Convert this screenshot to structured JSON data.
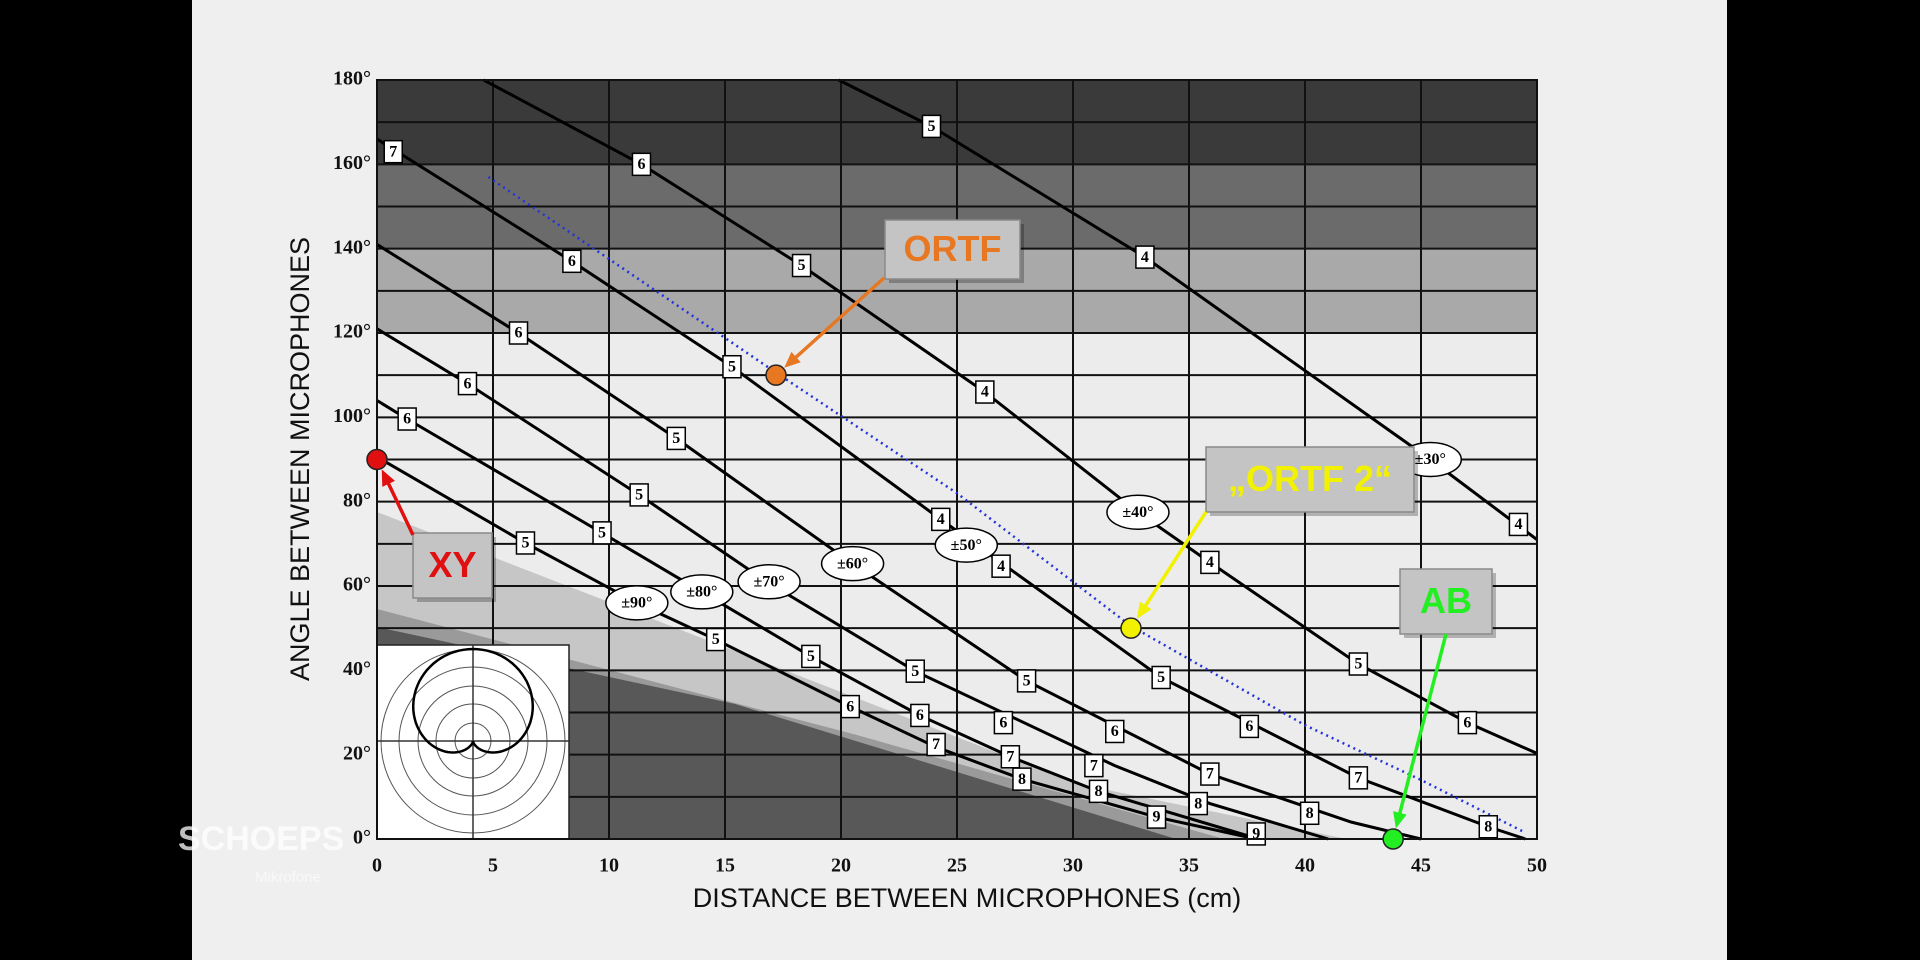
{
  "chart_data": {
    "type": "line",
    "xlabel": "DISTANCE BETWEEN MICROPHONES (cm)",
    "ylabel": "ANGLE BETWEEN MICROPHONES",
    "xlim": [
      0,
      50
    ],
    "ylim": [
      0,
      180
    ],
    "xticks": [
      0,
      5,
      10,
      15,
      20,
      25,
      30,
      35,
      40,
      45,
      50
    ],
    "yticks": [
      {
        "value": 0,
        "label": "0°"
      },
      {
        "value": 20,
        "label": "20°"
      },
      {
        "value": 40,
        "label": "40°"
      },
      {
        "value": 60,
        "label": "60°"
      },
      {
        "value": 80,
        "label": "80°"
      },
      {
        "value": 100,
        "label": "100°"
      },
      {
        "value": 120,
        "label": "120°"
      },
      {
        "value": 140,
        "label": "140°"
      },
      {
        "value": 160,
        "label": "160°"
      },
      {
        "value": 180,
        "label": "180°"
      }
    ],
    "minor_yticks": [
      10,
      30,
      50,
      70,
      90,
      110,
      130,
      150,
      170
    ],
    "grid": true,
    "series": [
      {
        "color": "#000000",
        "x": [
          19.9,
          23.9,
          33.1,
          45.4,
          50
        ],
        "values": [
          180,
          169,
          138,
          90,
          71
        ]
      },
      {
        "color": "#000000",
        "x": [
          4.6,
          11.4,
          18.3,
          26.2,
          32.8,
          35.9,
          42.3,
          47,
          50
        ],
        "values": [
          180,
          160,
          136,
          106,
          77.5,
          65.6,
          41.5,
          27.6,
          20.3
        ]
      },
      {
        "color": "#000000",
        "x": [
          0,
          8.4,
          15.3,
          24.3,
          33.8,
          42.3,
          47.9,
          49.5
        ],
        "values": [
          166,
          137,
          112,
          75.8,
          38.3,
          14.5,
          2.9,
          0
        ]
      },
      {
        "color": "#000000",
        "x": [
          0,
          6.1,
          12.9,
          20.5,
          28,
          35.9,
          42,
          45
        ],
        "values": [
          141,
          120,
          95,
          65.3,
          37.5,
          15.4,
          4,
          0
        ]
      },
      {
        "color": "#000000",
        "x": [
          0,
          3.9,
          11.3,
          16.8,
          23.2,
          31.8,
          35.9,
          41
        ],
        "values": [
          121,
          108,
          81.6,
          61,
          39.8,
          17.4,
          8.4,
          0
        ]
      },
      {
        "color": "#000000",
        "x": [
          0,
          1.3,
          9.7,
          14,
          18.7,
          23.4,
          27.3,
          31.1,
          38
        ],
        "values": [
          104,
          99.6,
          72.6,
          58.6,
          43.3,
          29.3,
          19.5,
          11.3,
          0
        ]
      },
      {
        "color": "#000000",
        "x": [
          0,
          6.4,
          11.2,
          14.6,
          20.4,
          24.1,
          27.8,
          33.6,
          37.9
        ],
        "values": [
          90.6,
          70.2,
          56,
          47.3,
          31.4,
          21.8,
          14.2,
          5.2,
          0
        ]
      }
    ],
    "reference_line": {
      "color": "#2233dd",
      "x": [
        4.8,
        17.2,
        25,
        32.5,
        40,
        45,
        49.5
      ],
      "values": [
        157,
        110.6,
        82,
        50.5,
        27,
        14,
        1.5
      ]
    },
    "angle_labels": [
      {
        "text": "±30°",
        "x": 45.4,
        "y": 90
      },
      {
        "text": "±40°",
        "x": 32.8,
        "y": 77.5
      },
      {
        "text": "±50°",
        "x": 25.4,
        "y": 69.7
      },
      {
        "text": "±60°",
        "x": 20.5,
        "y": 65.3
      },
      {
        "text": "±70°",
        "x": 16.9,
        "y": 61
      },
      {
        "text": "±80°",
        "x": 14,
        "y": 58.6
      },
      {
        "text": "±90°",
        "x": 11.2,
        "y": 56
      }
    ],
    "curve_labels": [
      {
        "text": "7",
        "x": 0.7,
        "y": 163
      },
      {
        "text": "6",
        "x": 11.4,
        "y": 160
      },
      {
        "text": "5",
        "x": 23.9,
        "y": 169
      },
      {
        "text": "5",
        "x": 18.3,
        "y": 136
      },
      {
        "text": "4",
        "x": 33.1,
        "y": 138
      },
      {
        "text": "6",
        "x": 8.4,
        "y": 137
      },
      {
        "text": "6",
        "x": 6.1,
        "y": 120
      },
      {
        "text": "5",
        "x": 15.3,
        "y": 112
      },
      {
        "text": "4",
        "x": 26.2,
        "y": 106
      },
      {
        "text": "6",
        "x": 3.9,
        "y": 108
      },
      {
        "text": "6",
        "x": 1.3,
        "y": 99.6
      },
      {
        "text": "5",
        "x": 12.9,
        "y": 95
      },
      {
        "text": "5",
        "x": 11.3,
        "y": 81.6
      },
      {
        "text": "5",
        "x": 9.7,
        "y": 72.6
      },
      {
        "text": "5",
        "x": 6.4,
        "y": 70.2
      },
      {
        "text": "4",
        "x": 24.3,
        "y": 75.8
      },
      {
        "text": "4",
        "x": 26.9,
        "y": 64.7
      },
      {
        "text": "4",
        "x": 35.9,
        "y": 65.6
      },
      {
        "text": "4",
        "x": 49.2,
        "y": 74.6
      },
      {
        "text": "5",
        "x": 14.6,
        "y": 47.3
      },
      {
        "text": "5",
        "x": 18.7,
        "y": 43.3
      },
      {
        "text": "5",
        "x": 23.2,
        "y": 39.8
      },
      {
        "text": "5",
        "x": 28,
        "y": 37.5
      },
      {
        "text": "5",
        "x": 33.8,
        "y": 38.3
      },
      {
        "text": "5",
        "x": 42.3,
        "y": 41.5
      },
      {
        "text": "6",
        "x": 20.4,
        "y": 31.4
      },
      {
        "text": "6",
        "x": 23.4,
        "y": 29.3
      },
      {
        "text": "6",
        "x": 27,
        "y": 27.6
      },
      {
        "text": "6",
        "x": 31.8,
        "y": 25.5
      },
      {
        "text": "6",
        "x": 37.6,
        "y": 26.7
      },
      {
        "text": "6",
        "x": 47,
        "y": 27.6
      },
      {
        "text": "7",
        "x": 24.1,
        "y": 22.4
      },
      {
        "text": "7",
        "x": 27.3,
        "y": 19.5
      },
      {
        "text": "7",
        "x": 30.9,
        "y": 17.4
      },
      {
        "text": "7",
        "x": 35.9,
        "y": 15.4
      },
      {
        "text": "7",
        "x": 42.3,
        "y": 14.5
      },
      {
        "text": "8",
        "x": 27.8,
        "y": 14.2
      },
      {
        "text": "8",
        "x": 31.1,
        "y": 11.3
      },
      {
        "text": "8",
        "x": 35.4,
        "y": 8.4
      },
      {
        "text": "8",
        "x": 40.2,
        "y": 6.1
      },
      {
        "text": "8",
        "x": 47.9,
        "y": 2.9
      },
      {
        "text": "9",
        "x": 33.6,
        "y": 5.2
      },
      {
        "text": "9",
        "x": 37.9,
        "y": 1.2
      }
    ],
    "setups": [
      {
        "label": "XY",
        "x": 0,
        "y": 90,
        "color": "#e01010"
      },
      {
        "label": "ORTF",
        "x": 17.2,
        "y": 110,
        "color": "#e87722"
      },
      {
        "label": "„ORTF 2“",
        "x": 32.5,
        "y": 50,
        "color": "#f2f200"
      },
      {
        "label": "AB",
        "x": 43.8,
        "y": 0,
        "color": "#22ee22"
      }
    ]
  },
  "watermark": {
    "brand": "SCHOEPS",
    "subtitle": "Mikrofone"
  }
}
